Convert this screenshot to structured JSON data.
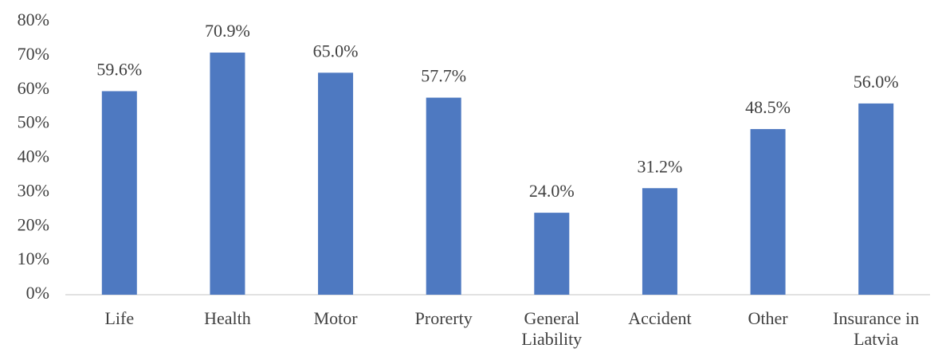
{
  "chart_data": {
    "type": "bar",
    "categories": [
      "Life",
      "Health",
      "Motor",
      "Prorerty",
      "General Liability",
      "Accident",
      "Other",
      "Insurance in Latvia"
    ],
    "values": [
      59.6,
      70.9,
      65.0,
      57.7,
      24.0,
      31.2,
      48.5,
      56.0
    ],
    "value_labels": [
      "59.6%",
      "70.9%",
      "65.0%",
      "57.7%",
      "24.0%",
      "31.2%",
      "48.5%",
      "56.0%"
    ],
    "color": "#4e79c1",
    "ylim": [
      0,
      80
    ],
    "yticks": [
      {
        "value": 0,
        "label": "0%"
      },
      {
        "value": 10,
        "label": "10%"
      },
      {
        "value": 20,
        "label": "20%"
      },
      {
        "value": 30,
        "label": "30%"
      },
      {
        "value": 40,
        "label": "40%"
      },
      {
        "value": 50,
        "label": "50%"
      },
      {
        "value": 60,
        "label": "60%"
      },
      {
        "value": 70,
        "label": "70%"
      },
      {
        "value": 80,
        "label": "80%"
      }
    ],
    "grid": false
  }
}
